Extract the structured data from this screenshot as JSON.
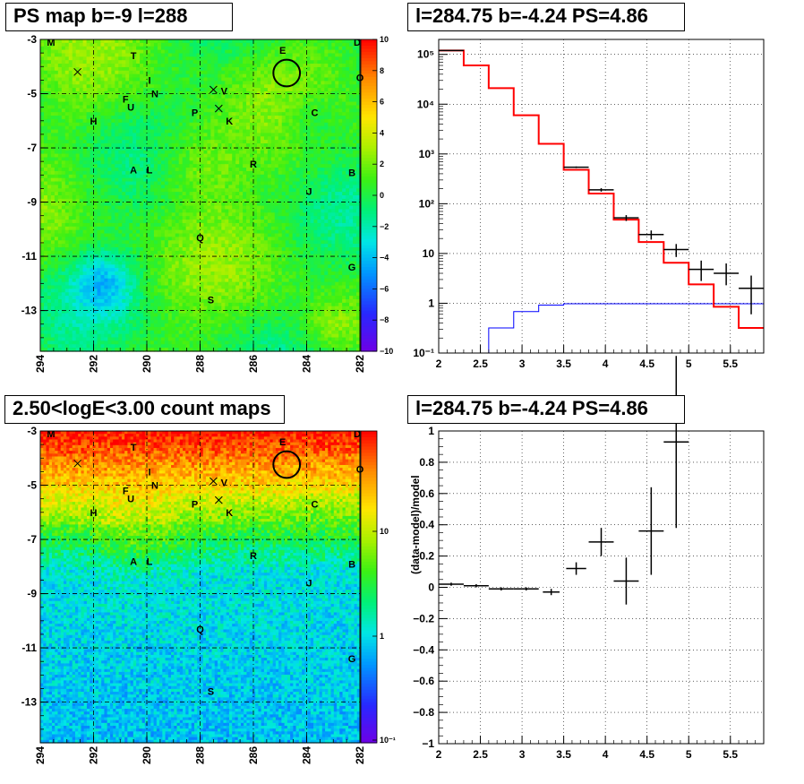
{
  "panels": {
    "top_left_title": "PS map b=-9 l=288",
    "top_right_title": "l=284.75 b=-4.24 PS=4.86",
    "bottom_left_title": "2.50<logE<3.00 count maps",
    "bottom_right_title": "l=284.75 b=-4.24 PS=4.86"
  },
  "chart_data": [
    {
      "type": "heatmap",
      "name": "ps-map",
      "x_range": [
        294,
        282
      ],
      "y_range": [
        -3,
        -14.5
      ],
      "x_ticks": [
        "294",
        "292",
        "290",
        "288",
        "286",
        "284",
        "282"
      ],
      "y_ticks": [
        "-3",
        "-5",
        "-7",
        "-9",
        "-11",
        "-13"
      ],
      "colorbar_ticks": [
        "10",
        "8",
        "6",
        "4",
        "2",
        "0",
        "−2",
        "−4",
        "−6",
        "−8",
        "−10"
      ],
      "z_range": [
        -10,
        10
      ],
      "grid": true,
      "source_labels": [
        {
          "t": "M",
          "l": 293.6,
          "b": -3.1
        },
        {
          "t": "T",
          "l": 290.5,
          "b": -3.6
        },
        {
          "t": "E",
          "l": 284.9,
          "b": -3.4
        },
        {
          "t": "D",
          "l": 282.1,
          "b": -3.1
        },
        {
          "t": "O",
          "l": 282.0,
          "b": -4.4
        },
        {
          "t": "I",
          "l": 289.9,
          "b": -4.5
        },
        {
          "t": "F",
          "l": 290.8,
          "b": -5.2
        },
        {
          "t": "N",
          "l": 289.7,
          "b": -5.0
        },
        {
          "t": "V",
          "l": 287.1,
          "b": -4.9
        },
        {
          "t": "U",
          "l": 290.6,
          "b": -5.5
        },
        {
          "t": "P",
          "l": 288.2,
          "b": -5.7
        },
        {
          "t": "K",
          "l": 286.9,
          "b": -6.0
        },
        {
          "t": "C",
          "l": 283.7,
          "b": -5.7
        },
        {
          "t": "H",
          "l": 292.0,
          "b": -6.0
        },
        {
          "t": "A",
          "l": 290.5,
          "b": -7.8
        },
        {
          "t": "L",
          "l": 289.9,
          "b": -7.8
        },
        {
          "t": "R",
          "l": 286.0,
          "b": -7.6
        },
        {
          "t": "B",
          "l": 282.3,
          "b": -7.9
        },
        {
          "t": "J",
          "l": 283.9,
          "b": -8.6
        },
        {
          "t": "Q",
          "l": 288.0,
          "b": -10.3
        },
        {
          "t": "G",
          "l": 282.3,
          "b": -11.4
        },
        {
          "t": "S",
          "l": 287.6,
          "b": -12.6
        }
      ],
      "crosses": [
        {
          "l": 292.6,
          "b": -4.2
        },
        {
          "l": 287.5,
          "b": -4.85
        },
        {
          "l": 287.3,
          "b": -5.55
        }
      ],
      "circle": {
        "l": 284.75,
        "b": -4.24,
        "r_deg": 0.5
      }
    },
    {
      "type": "line",
      "name": "spectrum",
      "x_range": [
        2,
        5.9
      ],
      "y_range": [
        0.1,
        200000
      ],
      "y_scale": "log",
      "x_ticks": [
        "2",
        "2.5",
        "3",
        "3.5",
        "4",
        "4.5",
        "5",
        "5.5"
      ],
      "y_ticks": [
        "10⁻¹",
        "1",
        "10",
        "10²",
        "10³",
        "10⁴",
        "10⁵"
      ],
      "grid": true,
      "model_total_step": {
        "edges": [
          2,
          2.3,
          2.6,
          2.9,
          3.2,
          3.5,
          3.8,
          4.1,
          4.4,
          4.7,
          5.0,
          5.3,
          5.6,
          5.9
        ],
        "values": [
          120000,
          60000,
          21000,
          6000,
          1600,
          480,
          160,
          48,
          17,
          6.5,
          2.4,
          0.85,
          0.32
        ],
        "color": "#ff0000"
      },
      "model_source_step": {
        "edges": [
          2.6,
          2.9,
          3.2,
          3.5,
          5.9
        ],
        "values": [
          0.32,
          0.68,
          0.92,
          0.98
        ],
        "color": "#0000ff"
      },
      "data_points": [
        {
          "x": 2.15,
          "y": 120000,
          "xerr": 0.15,
          "ylo": 119000,
          "yhi": 121000
        },
        {
          "x": 3.65,
          "y": 540,
          "xerr": 0.15,
          "ylo": 520,
          "yhi": 560
        },
        {
          "x": 3.95,
          "y": 190,
          "xerr": 0.15,
          "ylo": 175,
          "yhi": 205
        },
        {
          "x": 4.25,
          "y": 52,
          "xerr": 0.15,
          "ylo": 45,
          "yhi": 59
        },
        {
          "x": 4.55,
          "y": 24,
          "xerr": 0.15,
          "ylo": 19,
          "yhi": 29
        },
        {
          "x": 4.85,
          "y": 12,
          "xerr": 0.15,
          "ylo": 8.5,
          "yhi": 15.5
        },
        {
          "x": 5.15,
          "y": 4.8,
          "xerr": 0.15,
          "ylo": 2.8,
          "yhi": 7.2
        },
        {
          "x": 5.45,
          "y": 4.0,
          "xerr": 0.15,
          "ylo": 2.3,
          "yhi": 6.3
        },
        {
          "x": 5.75,
          "y": 2.0,
          "xerr": 0.15,
          "ylo": 0.6,
          "yhi": 3.6
        }
      ]
    },
    {
      "type": "heatmap",
      "name": "count-map",
      "x_range": [
        294,
        282
      ],
      "y_range": [
        -3,
        -14.5
      ],
      "x_ticks": [
        "294",
        "292",
        "290",
        "288",
        "286",
        "284",
        "282"
      ],
      "y_ticks": [
        "-3",
        "-5",
        "-7",
        "-9",
        "-11",
        "-13"
      ],
      "colorbar_ticks": [
        "10",
        "1",
        "10⁻¹"
      ],
      "grid": true
    },
    {
      "type": "scatter",
      "name": "residuals",
      "x_range": [
        2,
        5.9
      ],
      "y_range": [
        -1,
        1
      ],
      "ylabel": "(data-model)/model",
      "x_ticks": [
        "2",
        "2.5",
        "3",
        "3.5",
        "4",
        "4.5",
        "5",
        "5.5"
      ],
      "y_ticks": [
        "1",
        "0.8",
        "0.6",
        "0.4",
        "0.2",
        "0",
        "−0.2",
        "−0.4",
        "−0.6",
        "−0.8",
        "−1"
      ],
      "grid": true,
      "points": [
        {
          "x": 2.15,
          "y": 0.02,
          "xerr": 0.15,
          "yerr": 0.01
        },
        {
          "x": 2.45,
          "y": 0.01,
          "xerr": 0.15,
          "yerr": 0.01
        },
        {
          "x": 2.75,
          "y": -0.01,
          "xerr": 0.15,
          "yerr": 0.01
        },
        {
          "x": 3.05,
          "y": -0.01,
          "xerr": 0.15,
          "yerr": 0.01
        },
        {
          "x": 3.35,
          "y": -0.03,
          "xerr": 0.1,
          "yerr": 0.02
        },
        {
          "x": 3.65,
          "y": 0.12,
          "xerr": 0.12,
          "yerr": 0.04
        },
        {
          "x": 3.95,
          "y": 0.29,
          "xerr": 0.15,
          "yerr": 0.09
        },
        {
          "x": 4.25,
          "y": 0.04,
          "xerr": 0.15,
          "yerr": 0.15
        },
        {
          "x": 4.55,
          "y": 0.36,
          "xerr": 0.15,
          "yerr": 0.28
        },
        {
          "x": 4.85,
          "y": 0.93,
          "xerr": 0.15,
          "yerr": 0.55
        }
      ]
    }
  ]
}
